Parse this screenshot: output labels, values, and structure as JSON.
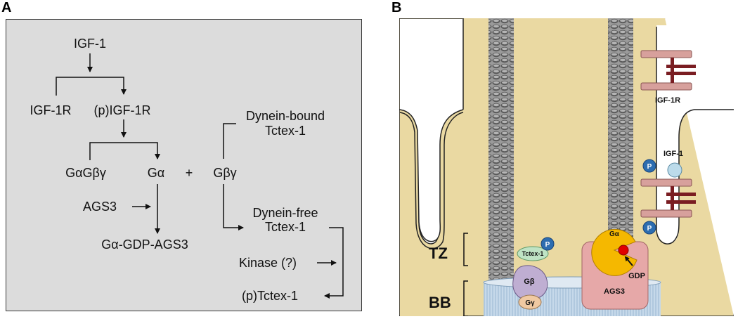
{
  "panel_a": {
    "letter": "A",
    "igf1": "IGF-1",
    "igf1r": "IGF-1R",
    "p_igf1r": "(p)IGF-1R",
    "galpha_gbetagamma": "GαGβγ",
    "galpha": "Gα",
    "plus": "+",
    "gbetagamma": "Gβγ",
    "dynein_bound_1": "Dynein-bound",
    "dynein_bound_2": "Tctex-1",
    "ags3": "AGS3",
    "dynein_free_1": "Dynein-free",
    "dynein_free_2": "Tctex-1",
    "galpha_gdp_ags3": "Gα-GDP-AGS3",
    "kinase": "Kinase (?)",
    "p_tctex1": "(p)Tctex-1"
  },
  "panel_b": {
    "letter": "B",
    "igf1r": "IGF-1R",
    "igf1": "IGF-1",
    "p": "P",
    "tctex1": "Tctex-1",
    "gbeta": "Gβ",
    "ggamma": "Gγ",
    "galpha": "Gα",
    "gdp": "GDP",
    "ags3": "AGS3",
    "tz": "TZ",
    "bb": "BB"
  }
}
